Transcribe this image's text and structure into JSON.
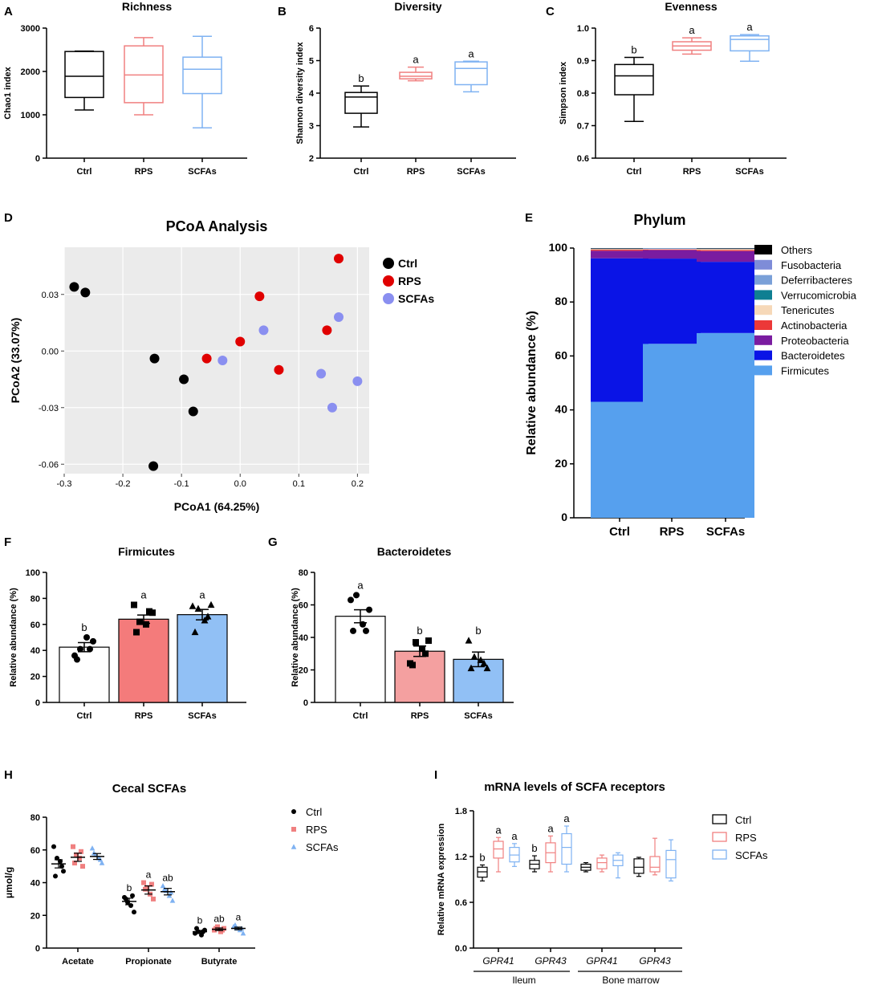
{
  "colors": {
    "ctrl": "#000000",
    "rps": "#f08080",
    "scfas": "#7fb2f2",
    "rps_fill": "#f47b7b",
    "scfas_fill": "#91c0f5",
    "rps_dot": "#e00000",
    "scfas_dot": "#8a8ff0",
    "pcoa_bg": "#ebebeb"
  },
  "chart_data": [
    {
      "id": "A",
      "type": "box",
      "panel_label": "A",
      "title": "Richness",
      "xlabel": "",
      "ylabel": "Chao1 index",
      "ylim": [
        0,
        3000
      ],
      "yticks": [
        0,
        1000,
        2000,
        3000
      ],
      "yticklabels": [
        "0",
        "1000",
        "2000",
        "3000"
      ],
      "categories": [
        "Ctrl",
        "RPS",
        "SCFAs"
      ],
      "boxes": [
        {
          "name": "Ctrl",
          "min": 1110,
          "q1": 1400,
          "median": 1890,
          "q3": 2460,
          "max": 2470
        },
        {
          "name": "RPS",
          "min": 1000,
          "q1": 1280,
          "median": 1920,
          "q3": 2590,
          "max": 2780
        },
        {
          "name": "SCFAs",
          "min": 700,
          "q1": 1490,
          "median": 2050,
          "q3": 2330,
          "max": 2810
        }
      ],
      "letters": []
    },
    {
      "id": "B",
      "type": "box",
      "panel_label": "B",
      "title": "Diversity",
      "xlabel": "",
      "ylabel": "Shannon diversity index",
      "ylim": [
        2,
        6
      ],
      "yticks": [
        2,
        3,
        4,
        5,
        6
      ],
      "yticklabels": [
        "2",
        "3",
        "4",
        "5",
        "6"
      ],
      "categories": [
        "Ctrl",
        "RPS",
        "SCFAs"
      ],
      "boxes": [
        {
          "name": "Ctrl",
          "min": 2.96,
          "q1": 3.38,
          "median": 3.88,
          "q3": 4.02,
          "max": 4.22
        },
        {
          "name": "RPS",
          "min": 4.38,
          "q1": 4.44,
          "median": 4.52,
          "q3": 4.64,
          "max": 4.8
        },
        {
          "name": "SCFAs",
          "min": 4.04,
          "q1": 4.26,
          "median": 4.76,
          "q3": 4.96,
          "max": 4.98
        }
      ],
      "letters": [
        "b",
        "a",
        "a"
      ]
    },
    {
      "id": "C",
      "type": "box",
      "panel_label": "C",
      "title": "Evenness",
      "xlabel": "",
      "ylabel": "Simpson index",
      "ylim": [
        0.6,
        1.0
      ],
      "yticks": [
        0.6,
        0.7,
        0.8,
        0.9,
        1.0
      ],
      "yticklabels": [
        "0.6",
        "0.7",
        "0.8",
        "0.9",
        "1.0"
      ],
      "categories": [
        "Ctrl",
        "RPS",
        "SCFAs"
      ],
      "boxes": [
        {
          "name": "Ctrl",
          "min": 0.713,
          "q1": 0.795,
          "median": 0.853,
          "q3": 0.888,
          "max": 0.91
        },
        {
          "name": "RPS",
          "min": 0.92,
          "q1": 0.932,
          "median": 0.945,
          "q3": 0.958,
          "max": 0.97
        },
        {
          "name": "SCFAs",
          "min": 0.898,
          "q1": 0.93,
          "median": 0.965,
          "q3": 0.976,
          "max": 0.98
        }
      ],
      "letters": [
        "b",
        "a",
        "a"
      ]
    },
    {
      "id": "D",
      "type": "scatter",
      "panel_label": "D",
      "title": "PCoA Analysis",
      "xlabel": "PCoA1 (64.25%)",
      "ylabel": "PCoA2 (33.07%)",
      "xlim": [
        -0.3,
        0.22
      ],
      "ylim": [
        -0.065,
        0.055
      ],
      "xticks": [
        -0.3,
        -0.2,
        -0.1,
        0.0,
        0.1,
        0.2
      ],
      "xticklabels": [
        "-0.3",
        "-0.2",
        "-0.1",
        "0.0",
        "0.1",
        "0.2"
      ],
      "yticks": [
        -0.06,
        -0.03,
        0.0,
        0.03
      ],
      "yticklabels": [
        "-0.06",
        "-0.03",
        "0.00",
        "0.03"
      ],
      "series": [
        {
          "name": "Ctrl",
          "points": [
            [
              -0.283,
              0.034
            ],
            [
              -0.264,
              0.031
            ],
            [
              -0.146,
              -0.004
            ],
            [
              -0.096,
              -0.015
            ],
            [
              -0.08,
              -0.032
            ],
            [
              -0.148,
              -0.061
            ]
          ]
        },
        {
          "name": "RPS",
          "points": [
            [
              -0.057,
              -0.004
            ],
            [
              0.0,
              0.005
            ],
            [
              0.033,
              0.029
            ],
            [
              0.066,
              -0.01
            ],
            [
              0.148,
              0.011
            ],
            [
              0.168,
              0.049
            ]
          ]
        },
        {
          "name": "SCFAs",
          "points": [
            [
              -0.03,
              -0.005
            ],
            [
              0.04,
              0.011
            ],
            [
              0.138,
              -0.012
            ],
            [
              0.168,
              0.018
            ],
            [
              0.2,
              -0.016
            ],
            [
              0.157,
              -0.03
            ]
          ]
        }
      ]
    },
    {
      "id": "E",
      "type": "stacked_bar",
      "panel_label": "E",
      "title": "Phylum",
      "xlabel": "",
      "ylabel": "Relative abundance (%)",
      "ylim": [
        0,
        100
      ],
      "yticks": [
        0,
        20,
        40,
        60,
        80,
        100
      ],
      "yticklabels": [
        "0",
        "20",
        "40",
        "60",
        "80",
        "100"
      ],
      "categories": [
        "Ctrl",
        "RPS",
        "SCFAs"
      ],
      "series": [
        {
          "name": "Firmicutes",
          "color": "#56a0ee",
          "values": [
            43.0,
            64.5,
            68.5
          ]
        },
        {
          "name": "Bacteroidetes",
          "color": "#0a14e6",
          "values": [
            53.2,
            31.6,
            26.4
          ]
        },
        {
          "name": "Proteobacteria",
          "color": "#7a1ca0",
          "values": [
            2.8,
            3.2,
            4.0
          ]
        },
        {
          "name": "Actinobacteria",
          "color": "#ec3838",
          "values": [
            0.4,
            0.2,
            0.4
          ]
        },
        {
          "name": "Tenericutes",
          "color": "#f6d8b8",
          "values": [
            0.3,
            0.3,
            0.4
          ]
        },
        {
          "name": "Verrucomicrobia",
          "color": "#0f7f92",
          "values": [
            0.1,
            0.1,
            0.1
          ]
        },
        {
          "name": "Deferribacteres",
          "color": "#7aa0d8",
          "values": [
            0.1,
            0.05,
            0.1
          ]
        },
        {
          "name": "Fusobacteria",
          "color": "#7e8cd8",
          "values": [
            0.05,
            0.05,
            0.05
          ]
        },
        {
          "name": "Others",
          "color": "#000000",
          "values": [
            0.05,
            0.0,
            0.05
          ]
        }
      ],
      "legend": [
        "Others",
        "Fusobacteria",
        "Deferribacteres",
        "Verrucomicrobia",
        "Tenericutes",
        "Actinobacteria",
        "Proteobacteria",
        "Bacteroidetes",
        "Firmicutes"
      ]
    },
    {
      "id": "F",
      "type": "bar",
      "panel_label": "F",
      "title": "Firmicutes",
      "xlabel": "",
      "ylabel": "Relative abundance (%)",
      "ylim": [
        0,
        100
      ],
      "yticks": [
        0,
        20,
        40,
        60,
        80,
        100
      ],
      "yticklabels": [
        "0",
        "20",
        "40",
        "60",
        "80",
        "100"
      ],
      "categories": [
        "Ctrl",
        "RPS",
        "SCFAs"
      ],
      "values": [
        42.5,
        64.0,
        67.5
      ],
      "sem": [
        3.5,
        3.2,
        4.0
      ],
      "points": [
        [
          36,
          41,
          50,
          47,
          33,
          41
        ],
        [
          75,
          62,
          60,
          69,
          54,
          70
        ],
        [
          74,
          72,
          63,
          75,
          54,
          66
        ]
      ],
      "markers": [
        "circle",
        "square",
        "triangle"
      ],
      "letters": [
        "b",
        "a",
        "a"
      ]
    },
    {
      "id": "G",
      "type": "bar",
      "panel_label": "G",
      "title": "Bacteroidetes",
      "xlabel": "",
      "ylabel": "Relative abundance (%)",
      "ylim": [
        0,
        80
      ],
      "yticks": [
        0,
        20,
        40,
        60,
        80
      ],
      "yticklabels": [
        "0",
        "20",
        "40",
        "60",
        "80"
      ],
      "categories": [
        "Ctrl",
        "RPS",
        "SCFAs"
      ],
      "values": [
        53.0,
        31.5,
        26.5
      ],
      "sem": [
        4.0,
        3.2,
        4.5
      ],
      "points": [
        [
          63,
          66,
          48,
          57,
          44,
          44
        ],
        [
          24,
          37,
          33,
          38,
          23,
          30
        ],
        [
          38,
          28,
          26,
          21,
          21,
          24
        ]
      ],
      "markers": [
        "circle",
        "square",
        "triangle"
      ],
      "letters": [
        "a",
        "b",
        "b"
      ]
    },
    {
      "id": "H",
      "type": "dot",
      "panel_label": "H",
      "title": "Cecal SCFAs",
      "xlabel": "",
      "ylabel": "μmol/g",
      "ylim": [
        0,
        80
      ],
      "yticks": [
        0,
        20,
        40,
        60,
        80
      ],
      "yticklabels": [
        "0",
        "20",
        "40",
        "60",
        "80"
      ],
      "categories": [
        "Acetate",
        "Propionate",
        "Butyrate"
      ],
      "series": [
        {
          "name": "Ctrl",
          "means": [
            51.5,
            28.5,
            10.0
          ],
          "sem": [
            2.5,
            2.0,
            0.8
          ],
          "points": [
            [
              62,
              55,
              53,
              47,
              44,
              50
            ],
            [
              31,
              28,
              26,
              22,
              30,
              32
            ],
            [
              9,
              10,
              8,
              11,
              12,
              10
            ]
          ],
          "marker": "circle"
        },
        {
          "name": "RPS",
          "means": [
            55.5,
            35.5,
            11.5
          ],
          "sem": [
            2.5,
            2.5,
            0.8
          ],
          "points": [
            [
              62,
              57,
              55,
              50,
              52,
              59
            ],
            [
              40,
              37,
              33,
              30,
              36,
              39
            ],
            [
              11,
              13,
              10,
              12,
              12,
              11
            ]
          ],
          "marker": "square"
        },
        {
          "name": "SCFAs",
          "means": [
            56.0,
            34.5,
            12.0
          ],
          "sem": [
            1.8,
            2.0,
            0.8
          ],
          "points": [
            [
              61,
              57,
              55,
              52,
              58,
              54
            ],
            [
              38,
              35,
              32,
              29,
              36,
              34
            ],
            [
              13,
              12,
              11,
              9,
              14,
              12
            ]
          ],
          "marker": "triangle"
        }
      ],
      "letters": [
        [
          "",
          "",
          ""
        ],
        [
          "b",
          "a",
          "ab"
        ],
        [
          "b",
          "ab",
          "a"
        ]
      ]
    },
    {
      "id": "I",
      "type": "box",
      "panel_label": "I",
      "title": "mRNA levels of SCFA receptors",
      "xlabel": "",
      "ylabel": "Relative mRNA expression",
      "ylim": [
        0,
        1.8
      ],
      "yticks": [
        0,
        0.6,
        1.2,
        1.8
      ],
      "yticklabels": [
        "0.0",
        "0.6",
        "1.2",
        "1.8"
      ],
      "categories": [
        "GPR41",
        "GPR43",
        "GPR41",
        "GPR43"
      ],
      "tissues": [
        "Ileum",
        "Bone marrow"
      ],
      "series_names": [
        "Ctrl",
        "RPS",
        "SCFAs"
      ],
      "groups": [
        {
          "boxes": [
            {
              "min": 0.88,
              "q1": 0.93,
              "median": 1.0,
              "q3": 1.06,
              "max": 1.09
            },
            {
              "min": 1.0,
              "q1": 1.18,
              "median": 1.3,
              "q3": 1.4,
              "max": 1.45
            },
            {
              "min": 1.07,
              "q1": 1.13,
              "median": 1.22,
              "q3": 1.32,
              "max": 1.37
            }
          ],
          "letters": [
            "b",
            "a",
            "a"
          ]
        },
        {
          "boxes": [
            {
              "min": 1.0,
              "q1": 1.04,
              "median": 1.1,
              "q3": 1.15,
              "max": 1.21
            },
            {
              "min": 1.0,
              "q1": 1.12,
              "median": 1.25,
              "q3": 1.38,
              "max": 1.47
            },
            {
              "min": 1.0,
              "q1": 1.1,
              "median": 1.32,
              "q3": 1.5,
              "max": 1.6
            }
          ],
          "letters": [
            "b",
            "a",
            "a"
          ]
        },
        {
          "boxes": [
            {
              "min": 1.0,
              "q1": 1.02,
              "median": 1.06,
              "q3": 1.1,
              "max": 1.12
            },
            {
              "min": 1.0,
              "q1": 1.04,
              "median": 1.12,
              "q3": 1.18,
              "max": 1.22
            },
            {
              "min": 0.92,
              "q1": 1.08,
              "median": 1.15,
              "q3": 1.22,
              "max": 1.25
            }
          ],
          "letters": [
            "",
            "",
            ""
          ]
        },
        {
          "boxes": [
            {
              "min": 0.94,
              "q1": 0.98,
              "median": 1.06,
              "q3": 1.17,
              "max": 1.19
            },
            {
              "min": 0.96,
              "q1": 1.0,
              "median": 1.06,
              "q3": 1.2,
              "max": 1.44
            },
            {
              "min": 0.88,
              "q1": 0.92,
              "median": 1.16,
              "q3": 1.28,
              "max": 1.42
            }
          ],
          "letters": [
            "",
            "",
            ""
          ]
        }
      ]
    }
  ]
}
